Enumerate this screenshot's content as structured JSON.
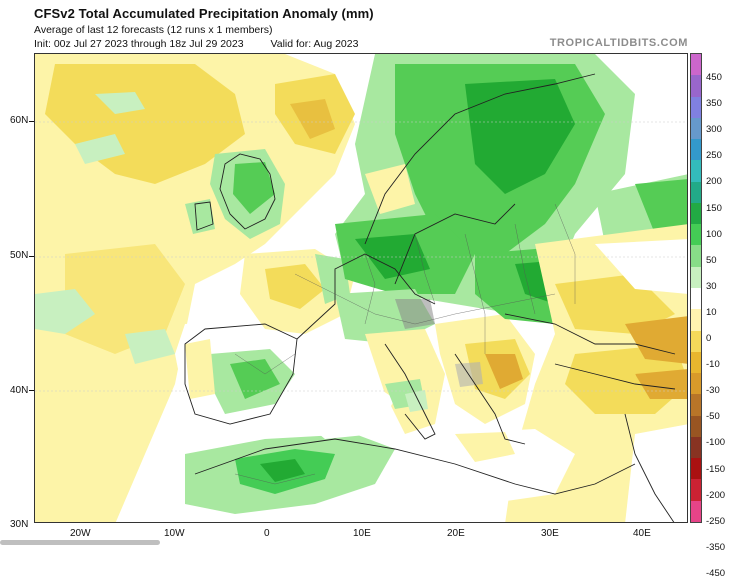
{
  "header": {
    "title": "CFSv2 Total Accumulated Precipitation Anomaly (mm)",
    "subtitle": "Average of last 12 forecasts (12 runs x 1 members)",
    "init": "Init: 00z Jul 27 2023 through 18z Jul 29 2023",
    "valid": "Valid for: Aug 2023",
    "brand": "TROPICALTIDBITS.COM"
  },
  "axes": {
    "lat_labels": [
      "60N",
      "50N",
      "40N",
      "30N"
    ],
    "lon_labels": [
      "20W",
      "10W",
      "0",
      "10E",
      "20E",
      "30E",
      "40E"
    ]
  },
  "colorbar": {
    "labels": [
      "450",
      "350",
      "300",
      "250",
      "200",
      "150",
      "100",
      "50",
      "30",
      "10",
      "0",
      "-10",
      "-30",
      "-50",
      "-100",
      "-150",
      "-200",
      "-250",
      "-350",
      "-450"
    ],
    "colors": [
      "#cc66cc",
      "#9966cc",
      "#8080e0",
      "#6699cc",
      "#3399cc",
      "#33bbbb",
      "#22aa88",
      "#22aa44",
      "#44cc55",
      "#88dd88",
      "#c8f0c0",
      "#ffffff",
      "#fff3b0",
      "#f5d95a",
      "#e8b62e",
      "#d89a2a",
      "#b87528",
      "#995522",
      "#883322",
      "#aa1111",
      "#cc2233",
      "#e64488"
    ]
  },
  "map": {
    "colors": {
      "wet_light": "#a8e8a0",
      "wet": "#55cc55",
      "wet_dark": "#22aa33",
      "dry_light": "#fdf4a8",
      "dry": "#f3dc5a",
      "dry_dark": "#e0aa33",
      "neutral": "#ffffff"
    }
  }
}
